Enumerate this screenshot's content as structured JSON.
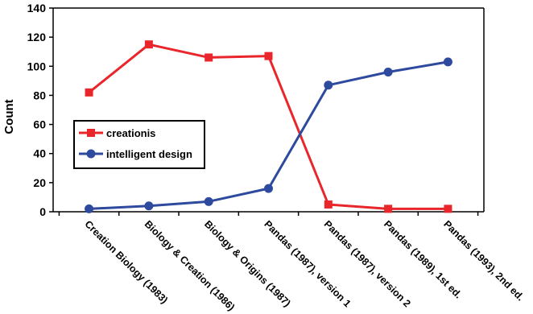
{
  "chart_data": {
    "type": "line",
    "title": "",
    "xlabel": "",
    "ylabel": "Count",
    "ylim": [
      0,
      140
    ],
    "yticks": [
      0,
      20,
      40,
      60,
      80,
      100,
      120,
      140
    ],
    "grid": false,
    "legend_position": "center-left",
    "categories": [
      "Creation Biology (1983)",
      "Biology & Creation (1986)",
      "Biology & Origins (1987)",
      "Pandas (1987), version 1",
      "Pandas (1987), version 2",
      "Pandas (1989), 1st ed.",
      "Pandas (1993), 2nd ed."
    ],
    "series": [
      {
        "name": "creationis",
        "color": "#e8262b",
        "marker": "square",
        "values": [
          82,
          115,
          106,
          107,
          5,
          2,
          2
        ]
      },
      {
        "name": "intelligent design",
        "color": "#2e4a9e",
        "marker": "circle",
        "values": [
          2,
          4,
          7,
          16,
          87,
          96,
          103
        ]
      }
    ]
  }
}
